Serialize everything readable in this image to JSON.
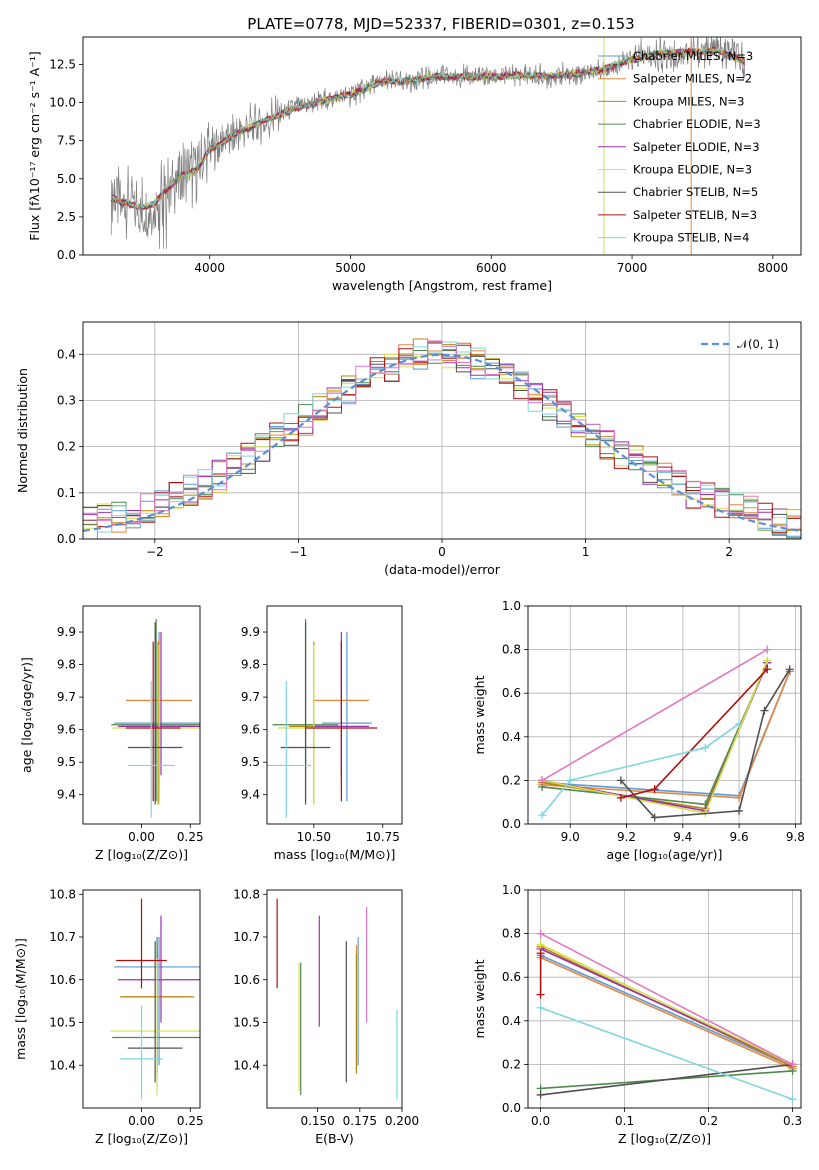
{
  "figure": {
    "title": "PLATE=0778, MJD=52337, FIBERID=0301, z=0.153"
  },
  "chart_data": [
    {
      "id": "spectrum",
      "type": "line",
      "title": "PLATE=0778, MJD=52337, FIBERID=0301, z=0.153",
      "xlabel": "wavelength [Angstrom, rest frame]",
      "ylabel": "Flux [fλ10⁻¹⁷ erg cm⁻² s⁻¹ A⁻¹]",
      "xlim": [
        3100,
        8200
      ],
      "ylim": [
        0,
        14.3
      ],
      "xticks": [
        4000,
        5000,
        6000,
        7000,
        8000
      ],
      "yticks": [
        0.0,
        2.5,
        5.0,
        7.5,
        10.0,
        12.5
      ],
      "grid": false,
      "legend_position": "upper right",
      "observed_color": "#808080",
      "approx_continuum": {
        "x": [
          3300,
          3400,
          3500,
          3600,
          3700,
          3800,
          3900,
          4000,
          4200,
          4400,
          4600,
          4800,
          5000,
          5200,
          5400,
          5600,
          5800,
          6000,
          6200,
          6400,
          6600,
          6800,
          7000,
          7200,
          7400,
          7600,
          7800
        ],
        "y": [
          3.7,
          3.4,
          3.2,
          3.3,
          4.4,
          5.2,
          5.5,
          6.9,
          8.0,
          8.8,
          9.6,
          10.1,
          10.5,
          11.3,
          11.4,
          11.7,
          11.7,
          11.7,
          11.8,
          11.7,
          11.9,
          12.2,
          12.8,
          13.2,
          13.3,
          13.4,
          12.7
        ]
      },
      "series": [
        {
          "name": "Chabrier MILES, N_SSP=3",
          "color": "#5b9bd5"
        },
        {
          "name": "Salpeter MILES, N_SSP=2",
          "color": "#e8853d"
        },
        {
          "name": "Kroupa MILES, N_SSP=3",
          "color": "#b8860b"
        },
        {
          "name": "Chabrier ELODIE, N_SSP=3",
          "color": "#4f8a4f"
        },
        {
          "name": "Salpeter ELODIE, N_SSP=3",
          "color": "#9b30b0"
        },
        {
          "name": "Kroupa ELODIE, N_SSP=3",
          "color": "#d4e04a"
        },
        {
          "name": "Chabrier STELIB, N_SSP=5",
          "color": "#505050"
        },
        {
          "name": "Salpeter STELIB, N_SSP=3",
          "color": "#b01010"
        },
        {
          "name": "Kroupa STELIB, N_SSP=4",
          "color": "#7fd6e0"
        }
      ],
      "vlines": [
        {
          "x": 6800,
          "color": "#d4e04a"
        },
        {
          "x": 7420,
          "color": "#e8853d"
        }
      ]
    },
    {
      "id": "residuals",
      "type": "line",
      "xlabel": "(data-model)/error",
      "ylabel": "Normed distribution",
      "xlim": [
        -2.5,
        2.5
      ],
      "ylim": [
        0,
        0.47
      ],
      "xticks": [
        -2,
        -1,
        0,
        1,
        2
      ],
      "yticks": [
        0.0,
        0.1,
        0.2,
        0.3,
        0.4
      ],
      "grid": true,
      "legend_position": "upper right",
      "gaussian": {
        "name": "𝒩(0, 1)",
        "color": "#5b8fd0",
        "mu": 0,
        "sigma": 1
      },
      "bins": [
        -2.5,
        -2.4,
        -2.3,
        -2.2,
        -2.1,
        -2.0,
        -1.9,
        -1.8,
        -1.7,
        -1.6,
        -1.5,
        -1.4,
        -1.3,
        -1.2,
        -1.1,
        -1.0,
        -0.9,
        -0.8,
        -0.7,
        -0.6,
        -0.5,
        -0.4,
        -0.3,
        -0.2,
        -0.1,
        0.0,
        0.1,
        0.2,
        0.3,
        0.4,
        0.5,
        0.6,
        0.7,
        0.8,
        0.9,
        1.0,
        1.1,
        1.2,
        1.3,
        1.4,
        1.5,
        1.6,
        1.7,
        1.8,
        1.9,
        2.0,
        2.1,
        2.2,
        2.3,
        2.4,
        2.5
      ],
      "mean_histogram": [
        0.035,
        0.042,
        0.05,
        0.058,
        0.068,
        0.078,
        0.092,
        0.105,
        0.12,
        0.136,
        0.158,
        0.176,
        0.198,
        0.218,
        0.238,
        0.258,
        0.28,
        0.3,
        0.32,
        0.34,
        0.36,
        0.375,
        0.39,
        0.4,
        0.398,
        0.395,
        0.39,
        0.38,
        0.365,
        0.35,
        0.33,
        0.31,
        0.29,
        0.27,
        0.248,
        0.226,
        0.206,
        0.186,
        0.168,
        0.148,
        0.13,
        0.115,
        0.1,
        0.088,
        0.076,
        0.066,
        0.058,
        0.05,
        0.043,
        0.037
      ]
    },
    {
      "id": "age-vs-Z",
      "type": "scatter",
      "xlabel": "Z [log₁₀(Z/Z⊙)]",
      "ylabel": "age  [log₁₀(age/yr)]",
      "xlim": [
        -0.3,
        0.3
      ],
      "ylim": [
        9.31,
        9.98
      ],
      "xticks": [
        0.0,
        0.25
      ],
      "yticks": [
        9.4,
        9.5,
        9.6,
        9.7,
        9.8,
        9.9
      ],
      "grid": false,
      "points": [
        {
          "series": "Chabrier MILES",
          "x": 0.09,
          "xerr": 0.23,
          "y": 9.62,
          "yerr": [
            9.38,
            9.9
          ]
        },
        {
          "series": "Salpeter MILES",
          "x": 0.09,
          "xerr": 0.17,
          "y": 9.69,
          "yerr": [
            9.42,
            9.88
          ]
        },
        {
          "series": "Kroupa MILES",
          "x": 0.085,
          "xerr": 0.19,
          "y": 9.61,
          "yerr": [
            9.37,
            9.87
          ]
        },
        {
          "series": "Chabrier ELODIE",
          "x": 0.075,
          "xerr": 0.23,
          "y": 9.615,
          "yerr": [
            9.38,
            9.94
          ]
        },
        {
          "series": "Salpeter ELODIE",
          "x": 0.1,
          "xerr": 0.22,
          "y": 9.61,
          "yerr": [
            9.46,
            9.9
          ]
        },
        {
          "series": "Kroupa ELODIE",
          "x": 0.09,
          "xerr": 0.24,
          "y": 9.605,
          "yerr": [
            9.37,
            9.86
          ]
        },
        {
          "series": "Chabrier STELIB",
          "x": 0.07,
          "xerr": 0.14,
          "y": 9.545,
          "yerr": [
            9.37,
            9.93
          ]
        },
        {
          "series": "Salpeter STELIB",
          "x": 0.06,
          "xerr": 0.14,
          "y": 9.605,
          "yerr": [
            9.38,
            9.87
          ]
        },
        {
          "series": "Kroupa STELIB",
          "x": 0.05,
          "xerr": 0.12,
          "y": 9.49,
          "yerr": [
            9.33,
            9.75
          ]
        }
      ]
    },
    {
      "id": "age-vs-mass",
      "type": "scatter",
      "xlabel": "mass [log₁₀(M/M⊙)]",
      "xlim": [
        10.33,
        10.82
      ],
      "ylim": [
        9.31,
        9.98
      ],
      "xticks": [
        10.5,
        10.75
      ],
      "xtick_labels": [
        "10.50",
        "10.75"
      ],
      "yticks": [
        9.4,
        9.5,
        9.6,
        9.7,
        9.8,
        9.9
      ],
      "grid": false,
      "points": [
        {
          "series": "Chabrier MILES",
          "x": 10.62,
          "xerr": 0.09,
          "y": 9.62,
          "yerr": [
            9.38,
            9.9
          ]
        },
        {
          "series": "Salpeter MILES",
          "x": 10.6,
          "xerr": 0.1,
          "y": 9.69,
          "yerr": [
            9.42,
            9.88
          ]
        },
        {
          "series": "Kroupa MILES",
          "x": 10.5,
          "xerr": 0.09,
          "y": 9.61,
          "yerr": [
            9.37,
            9.87
          ]
        },
        {
          "series": "Chabrier ELODIE",
          "x": 10.47,
          "xerr": 0.12,
          "y": 9.615,
          "yerr": [
            9.38,
            9.94
          ]
        },
        {
          "series": "Salpeter ELODIE",
          "x": 10.6,
          "xerr": 0.1,
          "y": 9.61,
          "yerr": [
            9.46,
            9.9
          ]
        },
        {
          "series": "Kroupa ELODIE",
          "x": 10.5,
          "xerr": 0.13,
          "y": 9.605,
          "yerr": [
            9.37,
            9.86
          ]
        },
        {
          "series": "Chabrier STELIB",
          "x": 10.47,
          "xerr": 0.09,
          "y": 9.545,
          "yerr": [
            9.37,
            9.93
          ]
        },
        {
          "series": "Salpeter STELIB",
          "x": 10.6,
          "xerr": 0.13,
          "y": 9.605,
          "yerr": [
            9.38,
            9.87
          ]
        },
        {
          "series": "Kroupa STELIB",
          "x": 10.4,
          "xerr": 0.09,
          "y": 9.49,
          "yerr": [
            9.33,
            9.75
          ]
        }
      ]
    },
    {
      "id": "mass-weight-vs-age",
      "type": "line",
      "xlabel": "age  [log₁₀(age/yr)]",
      "ylabel": "mass weight",
      "xlim": [
        8.85,
        9.82
      ],
      "ylim": [
        0.0,
        1.0
      ],
      "xticks": [
        9.0,
        9.2,
        9.4,
        9.6,
        9.8
      ],
      "yticks": [
        0.0,
        0.2,
        0.4,
        0.6,
        0.8,
        1.0
      ],
      "grid": true,
      "series": [
        {
          "name": "Chabrier MILES",
          "x": [
            8.9,
            9.6,
            9.78
          ],
          "y": [
            0.19,
            0.13,
            0.7
          ]
        },
        {
          "name": "Salpeter MILES",
          "x": [
            8.9,
            9.6,
            9.78
          ],
          "y": [
            0.18,
            0.12,
            0.7
          ]
        },
        {
          "name": "Kroupa MILES",
          "x": [
            8.9,
            9.48,
            9.7
          ],
          "y": [
            0.19,
            0.07,
            0.74
          ]
        },
        {
          "name": "Chabrier ELODIE",
          "x": [
            8.9,
            9.48,
            9.7
          ],
          "y": [
            0.17,
            0.09,
            0.74
          ]
        },
        {
          "name": "Salpeter ELODIE",
          "x": [
            8.9,
            9.48,
            9.7
          ],
          "y": [
            0.2,
            0.06,
            0.74
          ]
        },
        {
          "name": "Kroupa ELODIE",
          "x": [
            8.9,
            9.48,
            9.7
          ],
          "y": [
            0.2,
            0.05,
            0.75
          ]
        },
        {
          "name": "Chabrier STELIB",
          "x": [
            9.18,
            9.3,
            9.6,
            9.69,
            9.78
          ],
          "y": [
            0.2,
            0.03,
            0.06,
            0.52,
            0.71
          ]
        },
        {
          "name": "Salpeter STELIB",
          "x": [
            9.18,
            9.3,
            9.7
          ],
          "y": [
            0.12,
            0.16,
            0.71
          ]
        },
        {
          "name": "Kroupa STELIB",
          "x": [
            8.9,
            9.0,
            9.48,
            9.6
          ],
          "y": [
            0.04,
            0.2,
            0.35,
            0.46
          ]
        },
        {
          "name": "extra",
          "color": "#e377c2",
          "x": [
            8.9,
            9.7
          ],
          "y": [
            0.2,
            0.8
          ]
        }
      ]
    },
    {
      "id": "mass-vs-Z",
      "type": "scatter",
      "xlabel": "Z [log₁₀(Z/Z⊙)]",
      "ylabel": "mass [log₁₀(M/M⊙)]",
      "xlim": [
        -0.3,
        0.3
      ],
      "ylim": [
        10.3,
        10.81
      ],
      "xticks": [
        0.0,
        0.25
      ],
      "yticks": [
        10.4,
        10.5,
        10.6,
        10.7,
        10.8
      ],
      "grid": false,
      "points": [
        {
          "series": "Chabrier MILES",
          "x": 0.09,
          "xerr": 0.23,
          "y": 10.63,
          "yerr": [
            10.4,
            10.7
          ]
        },
        {
          "series": "Salpeter MILES",
          "x": 0.08,
          "xerr": 0.17,
          "y": 10.56,
          "yerr": [
            10.42,
            10.68
          ]
        },
        {
          "series": "Kroupa MILES",
          "x": 0.08,
          "xerr": 0.19,
          "y": 10.56,
          "yerr": [
            10.38,
            10.66
          ]
        },
        {
          "series": "Chabrier ELODIE",
          "x": 0.08,
          "xerr": 0.23,
          "y": 10.465,
          "yerr": [
            10.38,
            10.7
          ]
        },
        {
          "series": "Salpeter ELODIE",
          "x": 0.1,
          "xerr": 0.22,
          "y": 10.6,
          "yerr": [
            10.5,
            10.75
          ]
        },
        {
          "series": "Kroupa ELODIE",
          "x": 0.08,
          "xerr": 0.24,
          "y": 10.48,
          "yerr": [
            10.33,
            10.65
          ]
        },
        {
          "series": "Chabrier STELIB",
          "x": 0.07,
          "xerr": 0.14,
          "y": 10.44,
          "yerr": [
            10.36,
            10.69
          ]
        },
        {
          "series": "Salpeter STELIB",
          "x": 0.0,
          "xerr": 0.13,
          "y": 10.645,
          "yerr": [
            10.58,
            10.79
          ]
        },
        {
          "series": "Kroupa STELIB",
          "x": 0.0,
          "xerr": 0.11,
          "y": 10.415,
          "yerr": [
            10.32,
            10.54
          ]
        }
      ]
    },
    {
      "id": "mass-vs-ebv",
      "type": "scatter",
      "xlabel": "E(B-V)",
      "xlim": [
        0.12,
        0.2
      ],
      "ylim": [
        10.3,
        10.81
      ],
      "xticks": [
        0.15,
        0.175,
        0.2
      ],
      "xtick_labels": [
        "0.150",
        "0.175",
        "0.200"
      ],
      "yticks": [
        10.4,
        10.5,
        10.6,
        10.7,
        10.8
      ],
      "grid": false,
      "points": [
        {
          "series": "Chabrier MILES",
          "x": 0.174,
          "y": 10.55,
          "yerr": [
            10.4,
            10.7
          ]
        },
        {
          "series": "Salpeter MILES",
          "x": 0.173,
          "y": 10.53,
          "yerr": [
            10.39,
            10.68
          ]
        },
        {
          "series": "Kroupa MILES",
          "x": 0.173,
          "y": 10.52,
          "yerr": [
            10.38,
            10.66
          ]
        },
        {
          "series": "Chabrier ELODIE",
          "x": 0.14,
          "y": 10.49,
          "yerr": [
            10.33,
            10.64
          ]
        },
        {
          "series": "Salpeter ELODIE",
          "x": 0.151,
          "y": 10.62,
          "yerr": [
            10.49,
            10.75
          ]
        },
        {
          "series": "Kroupa ELODIE",
          "x": 0.139,
          "y": 10.49,
          "yerr": [
            10.34,
            10.64
          ]
        },
        {
          "series": "Chabrier STELIB",
          "x": 0.167,
          "y": 10.53,
          "yerr": [
            10.36,
            10.69
          ]
        },
        {
          "series": "Salpeter STELIB",
          "x": 0.126,
          "y": 10.68,
          "yerr": [
            10.58,
            10.79
          ]
        },
        {
          "series": "Kroupa STELIB",
          "x": 0.197,
          "y": 10.42,
          "yerr": [
            10.32,
            10.53
          ]
        },
        {
          "series": "extra",
          "color": "#e377c2",
          "x": 0.179,
          "y": 10.6,
          "yerr": [
            10.5,
            10.77
          ]
        }
      ]
    },
    {
      "id": "mass-weight-vs-Z",
      "type": "line",
      "xlabel": "Z [log₁₀(Z/Z⊙)]",
      "ylabel": "mass weight",
      "xlim": [
        -0.015,
        0.31
      ],
      "ylim": [
        0.0,
        1.0
      ],
      "xticks": [
        0.0,
        0.1,
        0.2,
        0.3
      ],
      "yticks": [
        0.0,
        0.2,
        0.4,
        0.6,
        0.8,
        1.0
      ],
      "grid": true,
      "series": [
        {
          "name": "Chabrier MILES",
          "x": [
            0.0,
            0.3
          ],
          "y": [
            0.7,
            0.19
          ]
        },
        {
          "name": "Salpeter MILES",
          "x": [
            0.0,
            0.3
          ],
          "y": [
            0.69,
            0.18
          ]
        },
        {
          "name": "Kroupa MILES",
          "x": [
            0.0,
            0.3
          ],
          "y": [
            0.74,
            0.19
          ]
        },
        {
          "name": "Chabrier ELODIE",
          "x": [
            0.0,
            0.3
          ],
          "y": [
            0.09,
            0.17
          ]
        },
        {
          "name": "Salpeter ELODIE",
          "x": [
            0.0,
            0.3
          ],
          "y": [
            0.73,
            0.2
          ]
        },
        {
          "name": "Kroupa ELODIE",
          "x": [
            0.0,
            0.3
          ],
          "y": [
            0.75,
            0.2
          ]
        },
        {
          "name": "Chabrier STELIB",
          "x": [
            0.0,
            0.3
          ],
          "y": [
            0.06,
            0.2
          ]
        },
        {
          "name": "Salpeter STELIB",
          "x": [
            0.0,
            0.0
          ],
          "y": [
            0.52,
            0.71
          ]
        },
        {
          "name": "Kroupa STELIB",
          "x": [
            0.0,
            0.3
          ],
          "y": [
            0.46,
            0.04
          ]
        },
        {
          "name": "extra",
          "color": "#e377c2",
          "x": [
            0.0,
            0.3
          ],
          "y": [
            0.8,
            0.2
          ]
        }
      ]
    }
  ]
}
